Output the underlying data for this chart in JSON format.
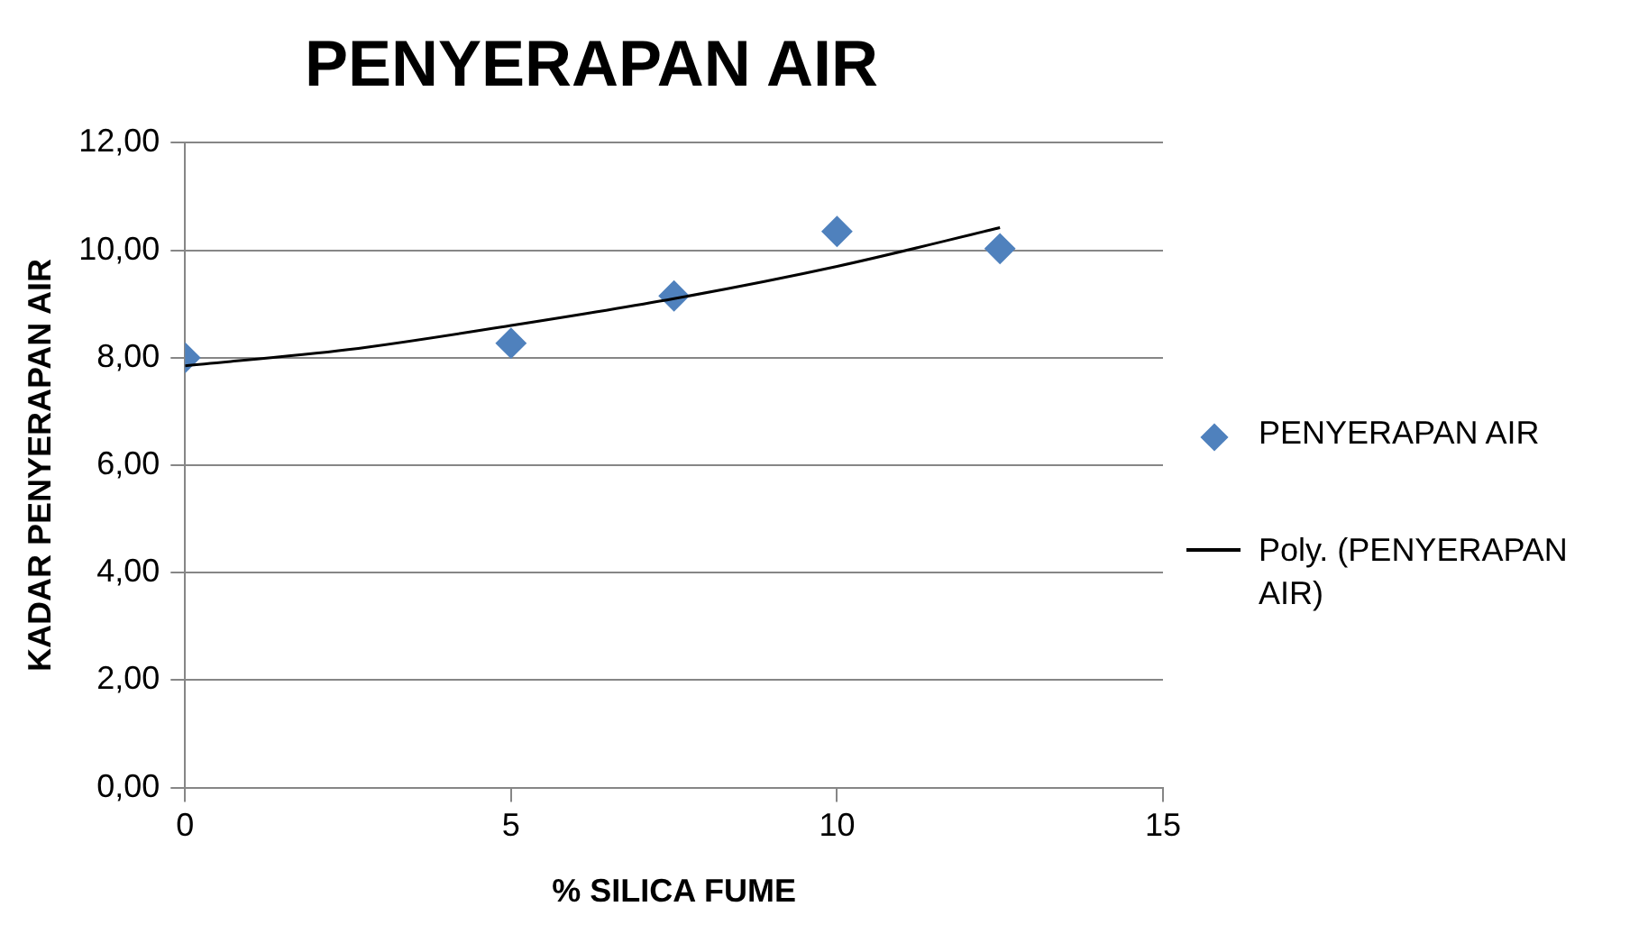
{
  "chart_data": {
    "type": "scatter",
    "title": "PENYERAPAN AIR",
    "xlabel": "% SILICA FUME",
    "ylabel": "KADAR PENYERAPAN AIR",
    "x": [
      0,
      5,
      7.5,
      10,
      12.5
    ],
    "series": [
      {
        "name": "PENYERAPAN AIR",
        "color": "#4f81bd",
        "values": [
          8.0,
          8.27,
          9.15,
          10.35,
          10.03
        ],
        "marker": "diamond"
      },
      {
        "name": "Poly. (PENYERAPAN AIR)",
        "type": "line",
        "color": "#000000",
        "x": [
          0,
          2.5,
          5,
          7.5,
          10,
          12.5
        ],
        "values": [
          7.85,
          8.15,
          8.6,
          9.1,
          9.7,
          10.42
        ],
        "marker": "none",
        "line_style": "solid"
      }
    ],
    "xlim": [
      0,
      15
    ],
    "xticks": [
      0,
      5,
      10,
      15
    ],
    "ylim": [
      0,
      12
    ],
    "yticks": [
      {
        "value": 0,
        "label": "0,00"
      },
      {
        "value": 2,
        "label": "2,00"
      },
      {
        "value": 4,
        "label": "4,00"
      },
      {
        "value": 6,
        "label": "6,00"
      },
      {
        "value": 8,
        "label": "8,00"
      },
      {
        "value": 10,
        "label": "10,00"
      },
      {
        "value": 12,
        "label": "12,00"
      }
    ],
    "grid": "y",
    "legend": "right"
  }
}
